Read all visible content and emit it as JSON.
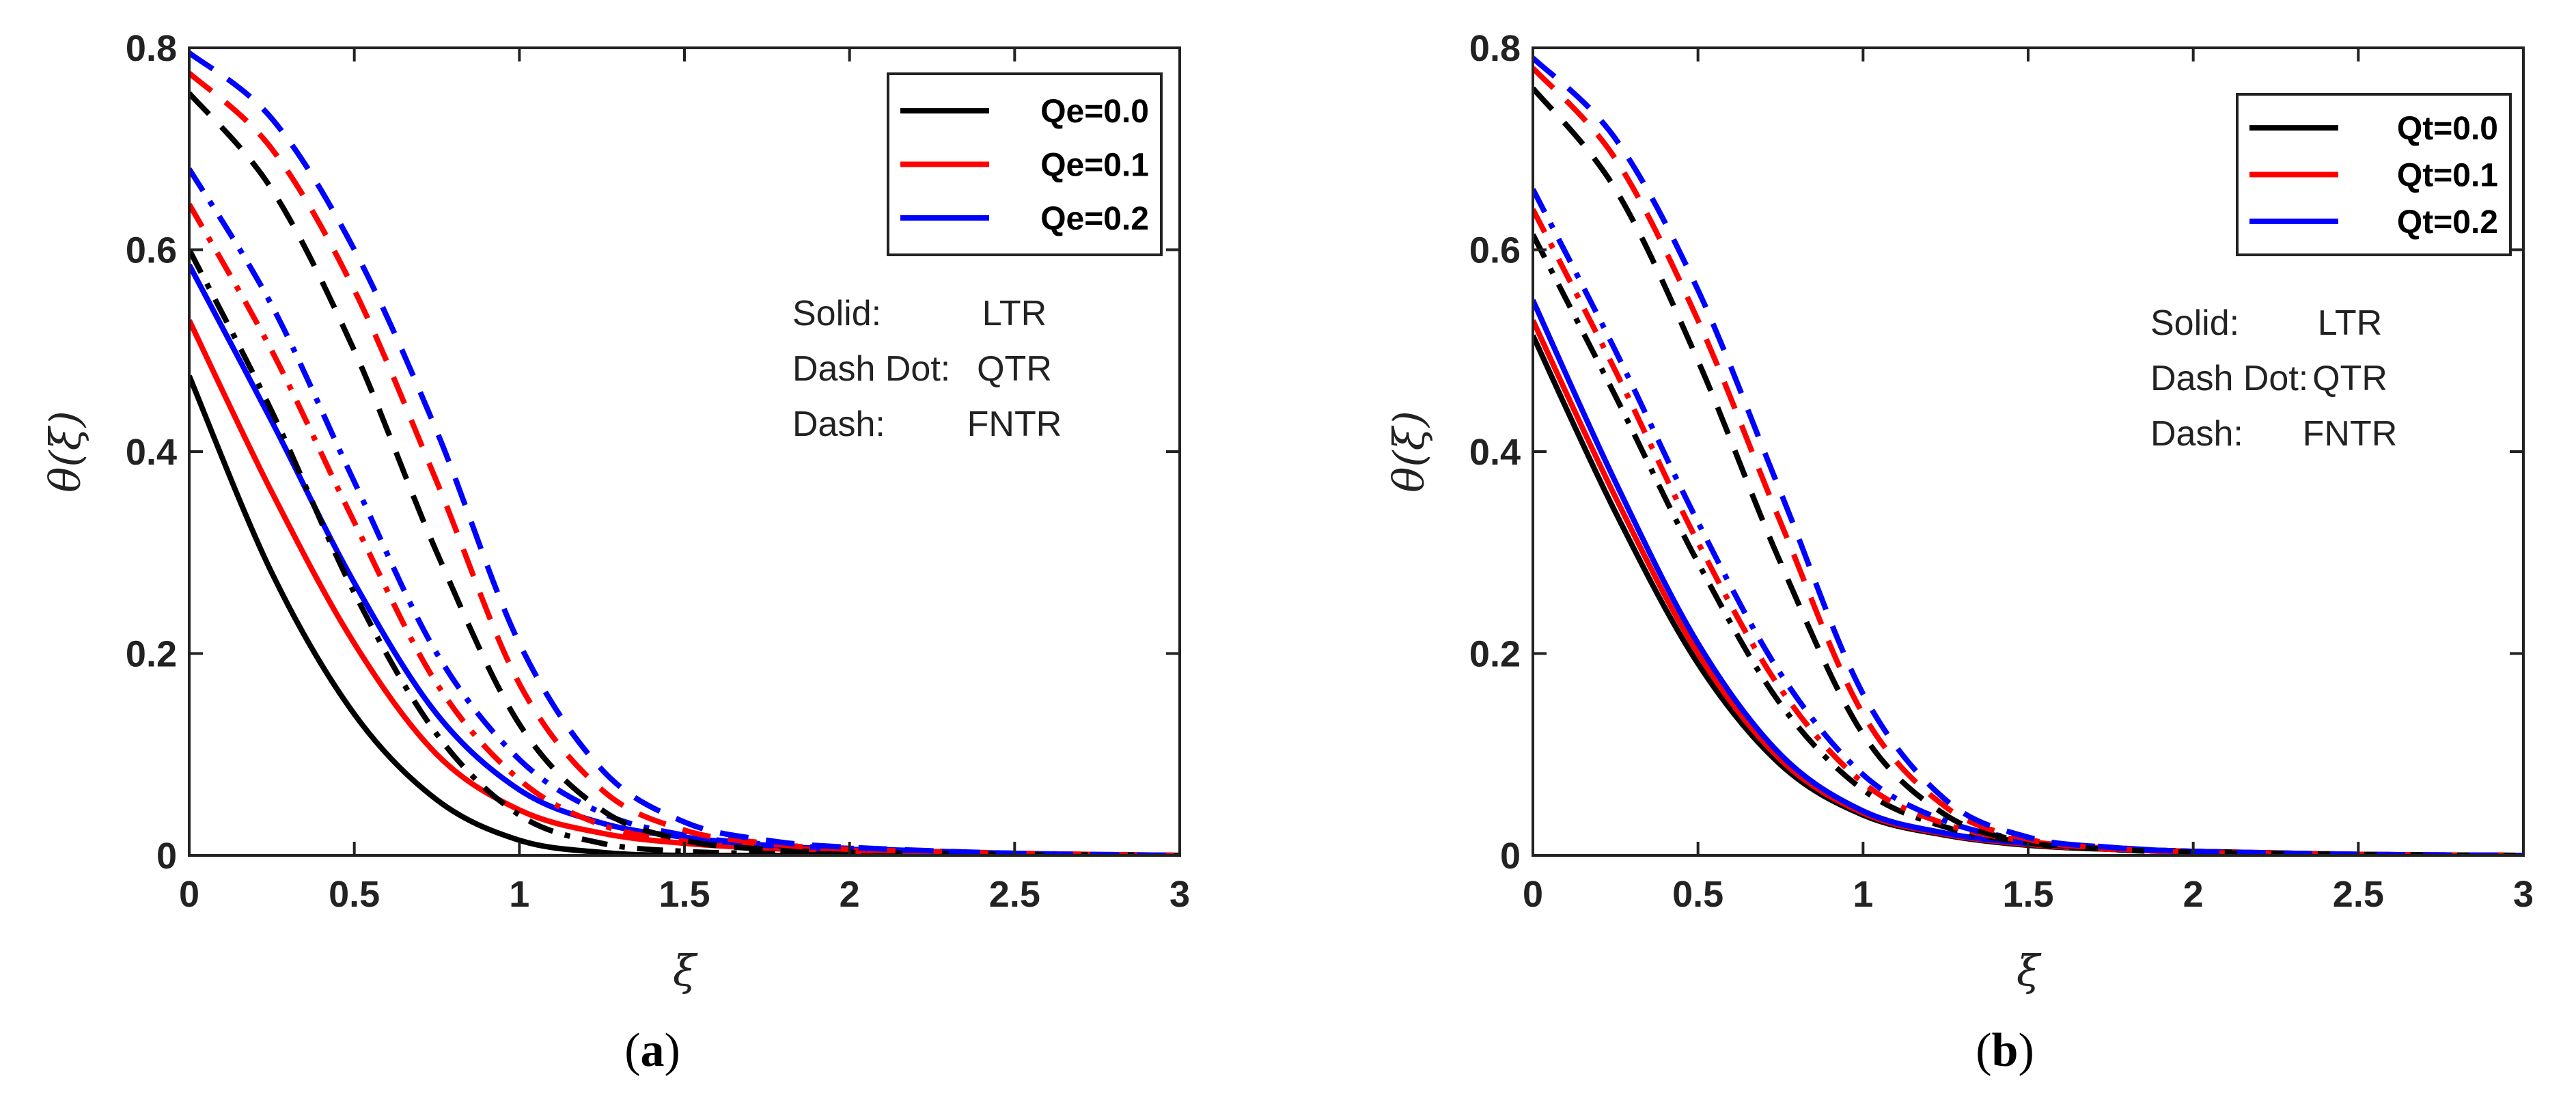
{
  "chart_data": [
    {
      "type": "line",
      "panel_label_open": "(",
      "panel_label_letter": "a",
      "panel_label_close": ")",
      "xlabel": "ξ",
      "ylabel": "θ(ξ)",
      "xlim": [
        0,
        3
      ],
      "ylim": [
        0,
        0.8
      ],
      "xticks": [
        0,
        0.5,
        1,
        1.5,
        2,
        2.5,
        3
      ],
      "xtick_labels": [
        "0",
        "0.5",
        "1",
        "1.5",
        "2",
        "2.5",
        "3"
      ],
      "yticks": [
        0,
        0.2,
        0.4,
        0.6,
        0.8
      ],
      "ytick_labels": [
        "0",
        "0.2",
        "0.4",
        "0.6",
        "0.8"
      ],
      "grid": false,
      "legend_position": "top-right",
      "legend": [
        {
          "label": "Qe=0.0",
          "color": "#000000"
        },
        {
          "label": "Qe=0.1",
          "color": "#ff0000"
        },
        {
          "label": "Qe=0.2",
          "color": "#0000ff"
        }
      ],
      "annotations": [
        {
          "left": "Solid:",
          "right": "LTR"
        },
        {
          "left": "Dash Dot:",
          "right": "QTR"
        },
        {
          "left": "Dash:",
          "right": "FNTR"
        }
      ],
      "series": [
        {
          "name": "Qe=0.0 LTR",
          "color": "#000000",
          "style": "solid",
          "x": [
            0,
            0.25,
            0.5,
            0.75,
            1.0,
            1.25,
            1.5,
            2.0,
            2.5,
            3.0
          ],
          "y": [
            0.475,
            0.28,
            0.14,
            0.055,
            0.015,
            0.003,
            0.0,
            0.0,
            0.0,
            0.0
          ]
        },
        {
          "name": "Qe=0.1 LTR",
          "color": "#ff0000",
          "style": "solid",
          "x": [
            0,
            0.25,
            0.5,
            0.75,
            1.0,
            1.25,
            1.5,
            1.75,
            2.0,
            2.5,
            3.0
          ],
          "y": [
            0.53,
            0.36,
            0.21,
            0.1,
            0.045,
            0.022,
            0.012,
            0.007,
            0.004,
            0.001,
            0.0
          ]
        },
        {
          "name": "Qe=0.2 LTR",
          "color": "#0000ff",
          "style": "solid",
          "x": [
            0,
            0.25,
            0.5,
            0.75,
            1.0,
            1.25,
            1.5,
            1.75,
            2.0,
            2.5,
            3.0
          ],
          "y": [
            0.585,
            0.43,
            0.27,
            0.14,
            0.065,
            0.032,
            0.018,
            0.01,
            0.006,
            0.002,
            0.0
          ]
        },
        {
          "name": "Qe=0.0 QTR",
          "color": "#000000",
          "style": "dashdot",
          "x": [
            0,
            0.25,
            0.5,
            0.75,
            1.0,
            1.25,
            1.5,
            1.75,
            2.0,
            2.5,
            3.0
          ],
          "y": [
            0.6,
            0.44,
            0.26,
            0.12,
            0.04,
            0.012,
            0.004,
            0.002,
            0.001,
            0.0,
            0.0
          ]
        },
        {
          "name": "Qe=0.1 QTR",
          "color": "#ff0000",
          "style": "dashdot",
          "x": [
            0,
            0.25,
            0.5,
            0.75,
            1.0,
            1.25,
            1.5,
            1.75,
            2.0,
            2.5,
            3.0
          ],
          "y": [
            0.645,
            0.5,
            0.33,
            0.17,
            0.075,
            0.03,
            0.014,
            0.008,
            0.005,
            0.002,
            0.0
          ]
        },
        {
          "name": "Qe=0.2 QTR",
          "color": "#0000ff",
          "style": "dashdot",
          "x": [
            0,
            0.25,
            0.5,
            0.75,
            1.0,
            1.25,
            1.5,
            1.75,
            2.0,
            2.5,
            3.0
          ],
          "y": [
            0.68,
            0.545,
            0.37,
            0.2,
            0.095,
            0.042,
            0.02,
            0.011,
            0.007,
            0.002,
            0.0
          ]
        },
        {
          "name": "Qe=0.0 FNTR",
          "color": "#000000",
          "style": "dash",
          "x": [
            0,
            0.25,
            0.5,
            0.75,
            1.0,
            1.25,
            1.5,
            1.75,
            2.0,
            2.5,
            3.0
          ],
          "y": [
            0.755,
            0.66,
            0.5,
            0.3,
            0.13,
            0.045,
            0.015,
            0.006,
            0.003,
            0.001,
            0.0
          ]
        },
        {
          "name": "Qe=0.1 FNTR",
          "color": "#ff0000",
          "style": "dash",
          "x": [
            0,
            0.25,
            0.5,
            0.75,
            1.0,
            1.25,
            1.5,
            1.75,
            2.0,
            2.5,
            3.0
          ],
          "y": [
            0.775,
            0.7,
            0.56,
            0.37,
            0.17,
            0.065,
            0.025,
            0.012,
            0.006,
            0.002,
            0.0
          ]
        },
        {
          "name": "Qe=0.2 FNTR",
          "color": "#0000ff",
          "style": "dash",
          "x": [
            0,
            0.25,
            0.5,
            0.75,
            1.0,
            1.25,
            1.5,
            1.75,
            2.0,
            2.5,
            3.0
          ],
          "y": [
            0.795,
            0.73,
            0.6,
            0.42,
            0.21,
            0.085,
            0.033,
            0.015,
            0.008,
            0.002,
            0.0
          ]
        }
      ]
    },
    {
      "type": "line",
      "panel_label_open": "(",
      "panel_label_letter": "b",
      "panel_label_close": ")",
      "xlabel": "ξ",
      "ylabel": "θ(ξ)",
      "xlim": [
        0,
        3
      ],
      "ylim": [
        0,
        0.8
      ],
      "xticks": [
        0,
        0.5,
        1,
        1.5,
        2,
        2.5,
        3
      ],
      "xtick_labels": [
        "0",
        "0.5",
        "1",
        "1.5",
        "2",
        "2.5",
        "3"
      ],
      "yticks": [
        0,
        0.2,
        0.4,
        0.6,
        0.8
      ],
      "ytick_labels": [
        "0",
        "0.2",
        "0.4",
        "0.6",
        "0.8"
      ],
      "grid": false,
      "legend_position": "top-right",
      "legend": [
        {
          "label": "Qt=0.0",
          "color": "#000000"
        },
        {
          "label": "Qt=0.1",
          "color": "#ff0000"
        },
        {
          "label": "Qt=0.2",
          "color": "#0000ff"
        }
      ],
      "annotations": [
        {
          "left": "Solid:",
          "right": "LTR"
        },
        {
          "left": "Dash Dot:",
          "right": "QTR"
        },
        {
          "left": "Dash:",
          "right": "FNTR"
        }
      ],
      "series": [
        {
          "name": "Qt=0.0 LTR",
          "color": "#000000",
          "style": "solid",
          "x": [
            0,
            0.25,
            0.5,
            0.75,
            1.0,
            1.25,
            1.5,
            1.75,
            2.0,
            2.5,
            3.0
          ],
          "y": [
            0.515,
            0.34,
            0.19,
            0.09,
            0.04,
            0.02,
            0.01,
            0.006,
            0.004,
            0.001,
            0.0
          ]
        },
        {
          "name": "Qt=0.1 LTR",
          "color": "#ff0000",
          "style": "solid",
          "x": [
            0,
            0.25,
            0.5,
            0.75,
            1.0,
            1.25,
            1.5,
            1.75,
            2.0,
            2.5,
            3.0
          ],
          "y": [
            0.53,
            0.355,
            0.2,
            0.095,
            0.042,
            0.021,
            0.011,
            0.006,
            0.004,
            0.001,
            0.0
          ]
        },
        {
          "name": "Qt=0.2 LTR",
          "color": "#0000ff",
          "style": "solid",
          "x": [
            0,
            0.25,
            0.5,
            0.75,
            1.0,
            1.25,
            1.5,
            1.75,
            2.0,
            2.5,
            3.0
          ],
          "y": [
            0.55,
            0.37,
            0.21,
            0.1,
            0.044,
            0.022,
            0.012,
            0.007,
            0.004,
            0.001,
            0.0
          ]
        },
        {
          "name": "Qt=0.0 QTR",
          "color": "#000000",
          "style": "dashdot",
          "x": [
            0,
            0.25,
            0.5,
            0.75,
            1.0,
            1.25,
            1.5,
            1.75,
            2.0,
            2.5,
            3.0
          ],
          "y": [
            0.615,
            0.455,
            0.29,
            0.15,
            0.065,
            0.028,
            0.013,
            0.007,
            0.004,
            0.001,
            0.0
          ]
        },
        {
          "name": "Qt=0.1 QTR",
          "color": "#ff0000",
          "style": "dashdot",
          "x": [
            0,
            0.25,
            0.5,
            0.75,
            1.0,
            1.25,
            1.5,
            1.75,
            2.0,
            2.5,
            3.0
          ],
          "y": [
            0.64,
            0.48,
            0.31,
            0.165,
            0.072,
            0.031,
            0.014,
            0.007,
            0.004,
            0.001,
            0.0
          ]
        },
        {
          "name": "Qt=0.2 QTR",
          "color": "#0000ff",
          "style": "dashdot",
          "x": [
            0,
            0.25,
            0.5,
            0.75,
            1.0,
            1.25,
            1.5,
            1.75,
            2.0,
            2.5,
            3.0
          ],
          "y": [
            0.66,
            0.5,
            0.33,
            0.18,
            0.08,
            0.034,
            0.015,
            0.008,
            0.004,
            0.001,
            0.0
          ]
        },
        {
          "name": "Qt=0.0 FNTR",
          "color": "#000000",
          "style": "dash",
          "x": [
            0,
            0.25,
            0.5,
            0.75,
            1.0,
            1.25,
            1.5,
            1.75,
            2.0,
            2.5,
            3.0
          ],
          "y": [
            0.76,
            0.66,
            0.49,
            0.29,
            0.12,
            0.04,
            0.013,
            0.006,
            0.003,
            0.001,
            0.0
          ]
        },
        {
          "name": "Qt=0.1 FNTR",
          "color": "#ff0000",
          "style": "dash",
          "x": [
            0,
            0.25,
            0.5,
            0.75,
            1.0,
            1.25,
            1.5,
            1.75,
            2.0,
            2.5,
            3.0
          ],
          "y": [
            0.78,
            0.69,
            0.53,
            0.33,
            0.14,
            0.048,
            0.016,
            0.007,
            0.003,
            0.001,
            0.0
          ]
        },
        {
          "name": "Qt=0.2 FNTR",
          "color": "#0000ff",
          "style": "dash",
          "x": [
            0,
            0.25,
            0.5,
            0.75,
            1.0,
            1.25,
            1.5,
            1.75,
            2.0,
            2.5,
            3.0
          ],
          "y": [
            0.79,
            0.71,
            0.56,
            0.36,
            0.16,
            0.055,
            0.018,
            0.008,
            0.004,
            0.001,
            0.0
          ]
        }
      ]
    }
  ]
}
